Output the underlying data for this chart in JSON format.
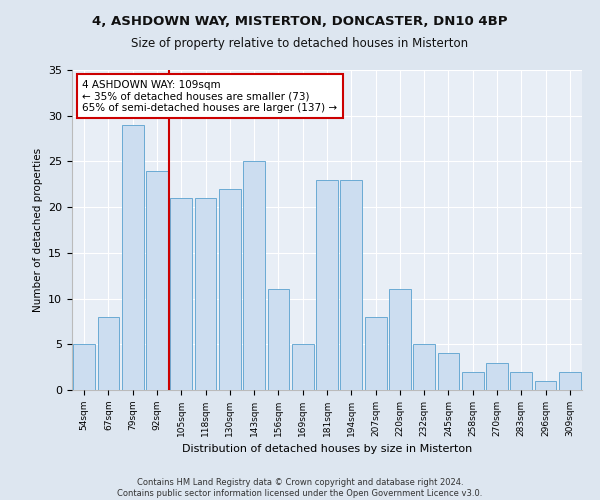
{
  "title1": "4, ASHDOWN WAY, MISTERTON, DONCASTER, DN10 4BP",
  "title2": "Size of property relative to detached houses in Misterton",
  "xlabel": "Distribution of detached houses by size in Misterton",
  "ylabel": "Number of detached properties",
  "footer1": "Contains HM Land Registry data © Crown copyright and database right 2024.",
  "footer2": "Contains public sector information licensed under the Open Government Licence v3.0.",
  "categories": [
    "54sqm",
    "67sqm",
    "79sqm",
    "92sqm",
    "105sqm",
    "118sqm",
    "130sqm",
    "143sqm",
    "156sqm",
    "169sqm",
    "181sqm",
    "194sqm",
    "207sqm",
    "220sqm",
    "232sqm",
    "245sqm",
    "258sqm",
    "270sqm",
    "283sqm",
    "296sqm",
    "309sqm"
  ],
  "values": [
    5,
    8,
    29,
    24,
    21,
    21,
    22,
    25,
    11,
    5,
    23,
    23,
    8,
    11,
    5,
    4,
    2,
    3,
    2,
    1,
    2
  ],
  "bar_color": "#ccddf0",
  "bar_edge_color": "#6aaad4",
  "vline_pos": 3.5,
  "vline_color": "#cc0000",
  "annotation_text": "4 ASHDOWN WAY: 109sqm\n← 35% of detached houses are smaller (73)\n65% of semi-detached houses are larger (137) →",
  "annotation_box_color": "#ffffff",
  "annotation_box_edge": "#cc0000",
  "ylim": [
    0,
    35
  ],
  "yticks": [
    0,
    5,
    10,
    15,
    20,
    25,
    30,
    35
  ],
  "bg_color": "#dde6f0",
  "plot_bg_color": "#e8eef6",
  "grid_color": "#ffffff"
}
